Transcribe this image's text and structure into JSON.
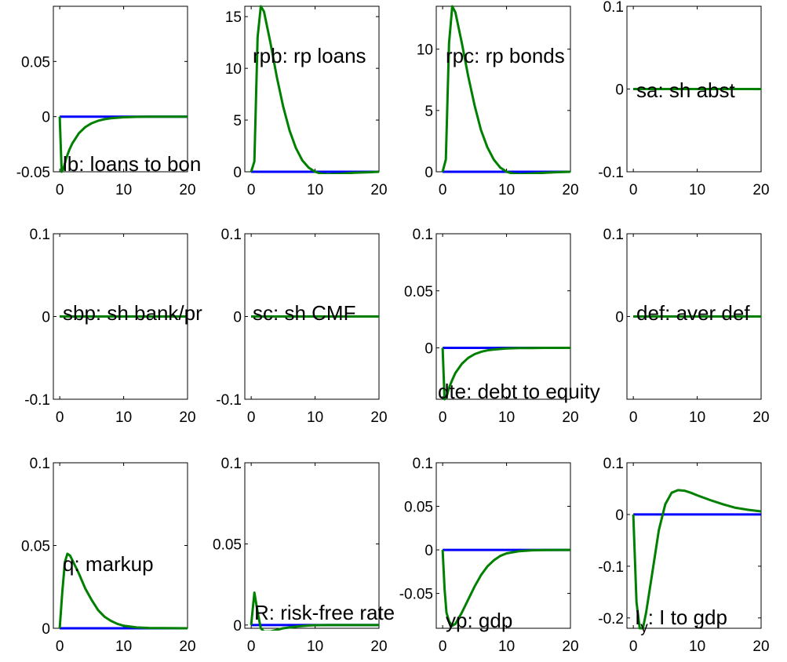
{
  "chart_data": [
    {
      "type": "line",
      "title": "lb: loans to bon",
      "xlim": [
        -1,
        20
      ],
      "ylim": [
        -0.05,
        0.1
      ],
      "xticks": [
        0,
        10,
        20
      ],
      "yticks": [
        -0.05,
        0,
        0.05
      ],
      "ytick_labels": [
        "-0.05",
        "0",
        "0.05"
      ],
      "series": [
        {
          "color": "#0000ff",
          "x": [
            0,
            20
          ],
          "y": [
            0,
            0
          ]
        },
        {
          "color": "#008000",
          "x": [
            0,
            0.3,
            0.6,
            1,
            1.5,
            2,
            3,
            4,
            5,
            6,
            7,
            8,
            10,
            12,
            14,
            16,
            20
          ],
          "y": [
            0,
            -0.05,
            -0.047,
            -0.038,
            -0.03,
            -0.024,
            -0.015,
            -0.0095,
            -0.006,
            -0.0038,
            -0.0024,
            -0.0015,
            -0.0006,
            -0.00025,
            -0.0001,
            0,
            0
          ]
        }
      ]
    },
    {
      "type": "line",
      "title": "rpb: rp loans",
      "xlim": [
        -1,
        20
      ],
      "ylim": [
        0,
        16
      ],
      "xticks": [
        0,
        10,
        20
      ],
      "yticks": [
        0,
        5,
        10,
        15
      ],
      "ytick_labels": [
        "0",
        "5",
        "10",
        "15"
      ],
      "series": [
        {
          "color": "#0000ff",
          "x": [
            0,
            20
          ],
          "y": [
            0,
            0
          ]
        },
        {
          "color": "#008000",
          "x": [
            0,
            0.5,
            1,
            1.5,
            2,
            3,
            4,
            5,
            6,
            7,
            8,
            9,
            10,
            11,
            12,
            14,
            16,
            18,
            20
          ],
          "y": [
            0,
            1,
            13,
            16,
            15.5,
            12.5,
            9.2,
            6.3,
            4,
            2.3,
            1.1,
            0.4,
            0,
            -0.2,
            -0.25,
            -0.2,
            -0.1,
            -0.05,
            0
          ]
        }
      ]
    },
    {
      "type": "line",
      "title": "rpc: rp bonds",
      "xlim": [
        -1,
        20
      ],
      "ylim": [
        0,
        13.5
      ],
      "xticks": [
        0,
        10,
        20
      ],
      "yticks": [
        0,
        5,
        10
      ],
      "ytick_labels": [
        "0",
        "5",
        "10"
      ],
      "series": [
        {
          "color": "#0000ff",
          "x": [
            0,
            20
          ],
          "y": [
            0,
            0
          ]
        },
        {
          "color": "#008000",
          "x": [
            0,
            0.5,
            1,
            1.5,
            2,
            3,
            4,
            5,
            6,
            7,
            8,
            9,
            10,
            11,
            12,
            14,
            16,
            18,
            20
          ],
          "y": [
            0,
            1,
            10.5,
            13.5,
            13,
            10.5,
            7.8,
            5.4,
            3.4,
            2,
            1,
            0.35,
            0,
            -0.15,
            -0.2,
            -0.15,
            -0.08,
            -0.03,
            0
          ]
        }
      ]
    },
    {
      "type": "line",
      "title": "sa: sh abst",
      "xlim": [
        -1,
        20
      ],
      "ylim": [
        -0.1,
        0.1
      ],
      "xticks": [
        0,
        10,
        20
      ],
      "yticks": [
        -0.1,
        0,
        0.1
      ],
      "ytick_labels": [
        "-0.1",
        "0",
        "0.1"
      ],
      "series": [
        {
          "color": "#0000ff",
          "x": [
            0,
            20
          ],
          "y": [
            0,
            0
          ]
        },
        {
          "color": "#008000",
          "x": [
            0,
            20
          ],
          "y": [
            0,
            0
          ]
        }
      ]
    },
    {
      "type": "line",
      "title": "sbp: sh bank/pr",
      "xlim": [
        -1,
        20
      ],
      "ylim": [
        -0.1,
        0.1
      ],
      "xticks": [
        0,
        10,
        20
      ],
      "yticks": [
        -0.1,
        0,
        0.1
      ],
      "ytick_labels": [
        "-0.1",
        "0",
        "0.1"
      ],
      "series": [
        {
          "color": "#0000ff",
          "x": [
            0,
            20
          ],
          "y": [
            0,
            0
          ]
        },
        {
          "color": "#008000",
          "x": [
            0,
            20
          ],
          "y": [
            0,
            0
          ]
        }
      ]
    },
    {
      "type": "line",
      "title": "sc: sh CMF",
      "xlim": [
        -1,
        20
      ],
      "ylim": [
        -0.1,
        0.1
      ],
      "xticks": [
        0,
        10,
        20
      ],
      "yticks": [
        -0.1,
        0,
        0.1
      ],
      "ytick_labels": [
        "-0.1",
        "0",
        "0.1"
      ],
      "series": [
        {
          "color": "#0000ff",
          "x": [
            0,
            20
          ],
          "y": [
            0,
            0
          ]
        },
        {
          "color": "#008000",
          "x": [
            0,
            20
          ],
          "y": [
            0,
            0
          ]
        }
      ]
    },
    {
      "type": "line",
      "title": "dte: debt to equity",
      "xlim": [
        -1,
        20
      ],
      "ylim": [
        -0.045,
        0.1
      ],
      "xticks": [
        0,
        10,
        20
      ],
      "yticks": [
        0,
        0.05,
        0.1
      ],
      "ytick_labels": [
        "0",
        "0.05",
        "0.1"
      ],
      "series": [
        {
          "color": "#0000ff",
          "x": [
            0,
            20
          ],
          "y": [
            0,
            0
          ]
        },
        {
          "color": "#008000",
          "x": [
            0,
            0.3,
            0.6,
            1,
            1.5,
            2,
            3,
            4,
            5,
            6,
            7,
            8,
            10,
            12,
            14,
            16,
            20
          ],
          "y": [
            0,
            -0.045,
            -0.043,
            -0.035,
            -0.028,
            -0.022,
            -0.014,
            -0.0088,
            -0.0055,
            -0.0035,
            -0.0022,
            -0.0014,
            -0.00055,
            -0.0002,
            -0.0001,
            0,
            0
          ]
        }
      ]
    },
    {
      "type": "line",
      "title": "def: aver def",
      "xlim": [
        -1,
        20
      ],
      "ylim": [
        -0.1,
        0.1
      ],
      "xticks": [
        0,
        10,
        20
      ],
      "yticks": [
        -0.1,
        0,
        0.1
      ],
      "ytick_labels": [
        "",
        "0",
        "0.1"
      ],
      "series": [
        {
          "color": "#0000ff",
          "x": [
            0,
            20
          ],
          "y": [
            0,
            0
          ]
        },
        {
          "color": "#008000",
          "x": [
            0,
            20
          ],
          "y": [
            0,
            0
          ]
        }
      ]
    },
    {
      "type": "line",
      "title": "q:  markup",
      "xlim": [
        -1,
        20
      ],
      "ylim": [
        0,
        0.1
      ],
      "xticks": [
        0,
        10,
        20
      ],
      "yticks": [
        0,
        0.05,
        0.1
      ],
      "ytick_labels": [
        "0",
        "0.05",
        "0.1"
      ],
      "series": [
        {
          "color": "#0000ff",
          "x": [
            0,
            20
          ],
          "y": [
            0,
            0
          ]
        },
        {
          "color": "#008000",
          "x": [
            0,
            0.4,
            0.8,
            1.2,
            1.6,
            2,
            3,
            4,
            5,
            6,
            7,
            8,
            9,
            10,
            12,
            14,
            16,
            20
          ],
          "y": [
            0,
            0.022,
            0.04,
            0.045,
            0.044,
            0.041,
            0.033,
            0.024,
            0.017,
            0.011,
            0.007,
            0.0045,
            0.0027,
            0.0015,
            0.0005,
            0.0002,
            0.0001,
            0
          ]
        }
      ]
    },
    {
      "type": "line",
      "title": "R:  risk-free rate",
      "xlim": [
        -1,
        20
      ],
      "ylim": [
        -0.002,
        0.1
      ],
      "xticks": [
        0,
        10,
        20
      ],
      "yticks": [
        0,
        0.05,
        0.1
      ],
      "ytick_labels": [
        "0",
        "0.05",
        "0.1"
      ],
      "series": [
        {
          "color": "#0000ff",
          "x": [
            0,
            20
          ],
          "y": [
            0,
            0
          ]
        },
        {
          "color": "#008000",
          "x": [
            0,
            0.5,
            1,
            1.5,
            2,
            3,
            4,
            5,
            6,
            7,
            8,
            9,
            10,
            12,
            14,
            16,
            20
          ],
          "y": [
            0,
            0.02,
            0.008,
            -0.002,
            -0.004,
            -0.004,
            -0.003,
            -0.002,
            -0.0015,
            -0.001,
            -0.0006,
            -0.0003,
            -0.0001,
            0,
            0,
            0,
            0
          ]
        }
      ]
    },
    {
      "type": "line",
      "title": "yp: gdp",
      "xlim": [
        -1,
        20
      ],
      "ylim": [
        -0.09,
        0.1
      ],
      "xticks": [
        0,
        10,
        20
      ],
      "yticks": [
        -0.05,
        0,
        0.05,
        0.1
      ],
      "ytick_labels": [
        "-0.05",
        "0",
        "0.05",
        "0.1"
      ],
      "series": [
        {
          "color": "#0000ff",
          "x": [
            0,
            20
          ],
          "y": [
            0,
            0
          ]
        },
        {
          "color": "#008000",
          "x": [
            0,
            0.3,
            0.6,
            1,
            1.5,
            2,
            3,
            4,
            5,
            6,
            7,
            8,
            9,
            10,
            12,
            14,
            16,
            20
          ],
          "y": [
            0,
            -0.045,
            -0.072,
            -0.082,
            -0.087,
            -0.085,
            -0.072,
            -0.057,
            -0.042,
            -0.029,
            -0.019,
            -0.012,
            -0.007,
            -0.004,
            -0.0015,
            -0.0005,
            -0.0002,
            0
          ]
        }
      ]
    },
    {
      "type": "line",
      "title": "I",
      "title_subscript": "y",
      "title_rest": ": I to gdp",
      "xlim": [
        -1,
        20
      ],
      "ylim": [
        -0.22,
        0.1
      ],
      "xticks": [
        0,
        10,
        20
      ],
      "yticks": [
        -0.2,
        -0.1,
        0,
        0.1
      ],
      "ytick_labels": [
        "-0.2",
        "-0.1",
        "0",
        "0.1"
      ],
      "series": [
        {
          "color": "#0000ff",
          "x": [
            0,
            20
          ],
          "y": [
            0,
            0
          ]
        },
        {
          "color": "#008000",
          "x": [
            0,
            0.5,
            1,
            1.5,
            2,
            3,
            4,
            5,
            6,
            7,
            8,
            9,
            10,
            12,
            14,
            16,
            18,
            20
          ],
          "y": [
            0,
            -0.17,
            -0.22,
            -0.22,
            -0.19,
            -0.11,
            -0.03,
            0.02,
            0.042,
            0.047,
            0.046,
            0.042,
            0.037,
            0.028,
            0.02,
            0.013,
            0.009,
            0.006
          ]
        }
      ]
    }
  ]
}
